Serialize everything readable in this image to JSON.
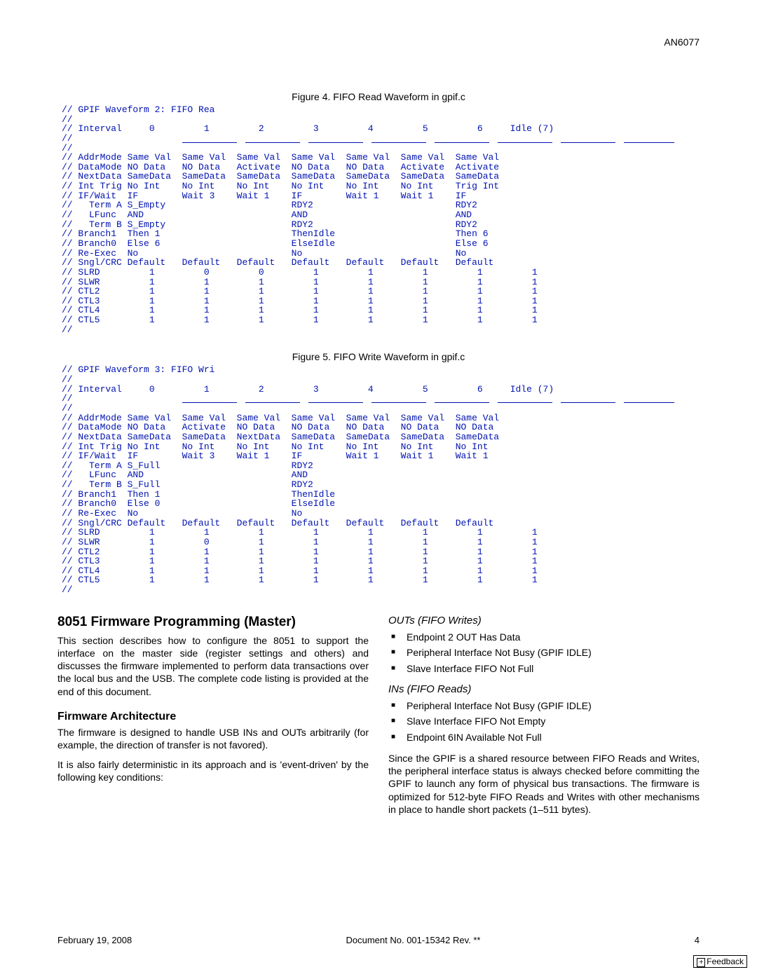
{
  "doc_id": "AN6077",
  "figure4_caption": "Figure 4.  FIFO Read Waveform in gpif.c",
  "figure5_caption": "Figure 5.  FIFO Write Waveform in gpif.c",
  "code4": "// GPIF Waveform 2: FIFO Rea\n//\n// Interval     0         1         2         3         4         5         6     Idle (7)\n//\n//\n// AddrMode Same Val  Same Val  Same Val  Same Val  Same Val  Same Val  Same Val\n// DataMode NO Data   NO Data   Activate  NO Data   NO Data   Activate  Activate\n// NextData SameData  SameData  SameData  SameData  SameData  SameData  SameData\n// Int Trig No Int    No Int    No Int    No Int    No Int    No Int    Trig Int\n// IF/Wait  IF        Wait 3    Wait 1    IF        Wait 1    Wait 1    IF\n//   Term A S_Empty                       RDY2                          RDY2\n//   LFunc  AND                           AND                           AND\n//   Term B S_Empty                       RDY2                          RDY2\n// Branch1  Then 1                        ThenIdle                      Then 6\n// Branch0  Else 6                        ElseIdle                      Else 6\n// Re-Exec  No                            No                            No\n// Sngl/CRC Default   Default   Default   Default   Default   Default   Default\n// SLRD         1         0         0         1         1         1         1         1\n// SLWR         1         1         1         1         1         1         1         1\n// CTL2         1         1         1         1         1         1         1         1\n// CTL3         1         1         1         1         1         1         1         1\n// CTL4         1         1         1         1         1         1         1         1\n// CTL5         1         1         1         1         1         1         1         1\n//",
  "code5": "// GPIF Waveform 3: FIFO Wri\n//\n// Interval     0         1         2         3         4         5         6     Idle (7)\n//\n//\n// AddrMode Same Val  Same Val  Same Val  Same Val  Same Val  Same Val  Same Val\n// DataMode NO Data   Activate  NO Data   NO Data   NO Data   NO Data   NO Data\n// NextData SameData  SameData  NextData  SameData  SameData  SameData  SameData\n// Int Trig No Int    No Int    No Int    No Int    No Int    No Int    No Int\n// IF/Wait  IF        Wait 3    Wait 1    IF        Wait 1    Wait 1    Wait 1\n//   Term A S_Full                        RDY2\n//   LFunc  AND                           AND\n//   Term B S_Full                        RDY2\n// Branch1  Then 1                        ThenIdle\n// Branch0  Else 0                        ElseIdle\n// Re-Exec  No                            No\n// Sngl/CRC Default   Default   Default   Default   Default   Default   Default\n// SLRD         1         1         1         1         1         1         1         1\n// SLWR         1         0         1         1         1         1         1         1\n// CTL2         1         1         1         1         1         1         1         1\n// CTL3         1         1         1         1         1         1         1         1\n// CTL4         1         1         1         1         1         1         1         1\n// CTL5         1         1         1         1         1         1         1         1\n//",
  "underline_widths": [
    78,
    78,
    78,
    78,
    78,
    78,
    78,
    72
  ],
  "underline_gaps": [
    12,
    12,
    12,
    12,
    12,
    12,
    12,
    0
  ],
  "h_main": "8051 Firmware Programming (Master)",
  "p_intro": "This section describes how to configure the 8051 to support the interface on the master side (register settings and others) and discusses the firmware implemented to perform data transactions over the local bus and the USB. The complete code listing is provided at the end of this document.",
  "h_arch": "Firmware Architecture",
  "p_arch1": "The firmware is designed to handle USB INs and OUTs arbitrarily (for example, the direction of transfer is not favored).",
  "p_arch2": "It is also fairly deterministic in its approach and is 'event-driven' by the following key conditions:",
  "h_outs": "OUTs (FIFO Writes)",
  "outs": [
    "Endpoint 2 OUT Has Data",
    "Peripheral Interface Not Busy (GPIF IDLE)",
    "Slave Interface FIFO Not Full"
  ],
  "h_ins": "INs (FIFO Reads)",
  "ins": [
    "Peripheral Interface Not Busy (GPIF IDLE)",
    "Slave Interface FIFO Not Empty",
    "Endpoint 6IN Available Not Full"
  ],
  "p_since": "Since the GPIF is a shared resource between FIFO Reads and Writes, the peripheral interface status is always checked before committing the GPIF to launch any form of physical bus transactions. The firmware is optimized for 512-byte FIFO Reads and Writes with other mechanisms in place to handle short packets (1–511 bytes).",
  "footer_date": "February 19, 2008",
  "footer_doc": "Document No. 001-15342 Rev. **",
  "footer_page": "4",
  "feedback_label": "Feedback"
}
